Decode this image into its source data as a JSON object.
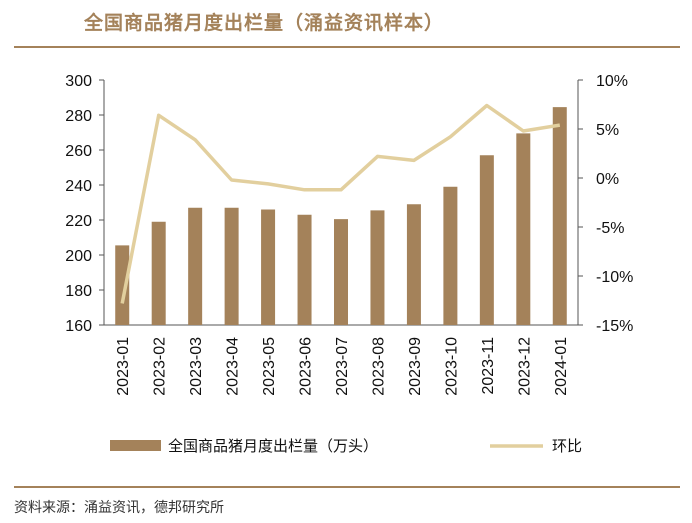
{
  "title": "全国商品猪月度出栏量（涌益资讯样本）",
  "source": "资料来源：涌益资讯，德邦研究所",
  "colors": {
    "bar": "#a4825a",
    "line": "#e2cf9e",
    "accent": "#a4825a"
  },
  "chart_data": {
    "type": "bar+line",
    "categories": [
      "2023-01",
      "2023-02",
      "2023-03",
      "2023-04",
      "2023-05",
      "2023-06",
      "2023-07",
      "2023-08",
      "2023-09",
      "2023-10",
      "2023-11",
      "2023-12",
      "2024-01"
    ],
    "series": [
      {
        "name": "全国商品猪月度出栏量（万头）",
        "type": "bar",
        "axis": "left",
        "values": [
          205.5,
          219,
          227,
          227,
          226,
          223,
          220.5,
          225.5,
          229,
          239,
          257,
          269.5,
          284.5
        ]
      },
      {
        "name": "环比",
        "type": "line",
        "axis": "right",
        "values": [
          -12.8,
          6.4,
          3.9,
          -0.2,
          -0.6,
          -1.2,
          -1.2,
          2.2,
          1.8,
          4.2,
          7.4,
          4.8,
          5.4
        ]
      }
    ],
    "ylim_left": [
      160,
      300
    ],
    "yticks_left": [
      "300",
      "280",
      "260",
      "240",
      "220",
      "200",
      "180",
      "160"
    ],
    "ylim_right": [
      -15,
      10
    ],
    "yticks_right": [
      "10%",
      "5%",
      "0%",
      "-5%",
      "-10%",
      "-15%"
    ],
    "grid": false,
    "legend": "bottom"
  }
}
